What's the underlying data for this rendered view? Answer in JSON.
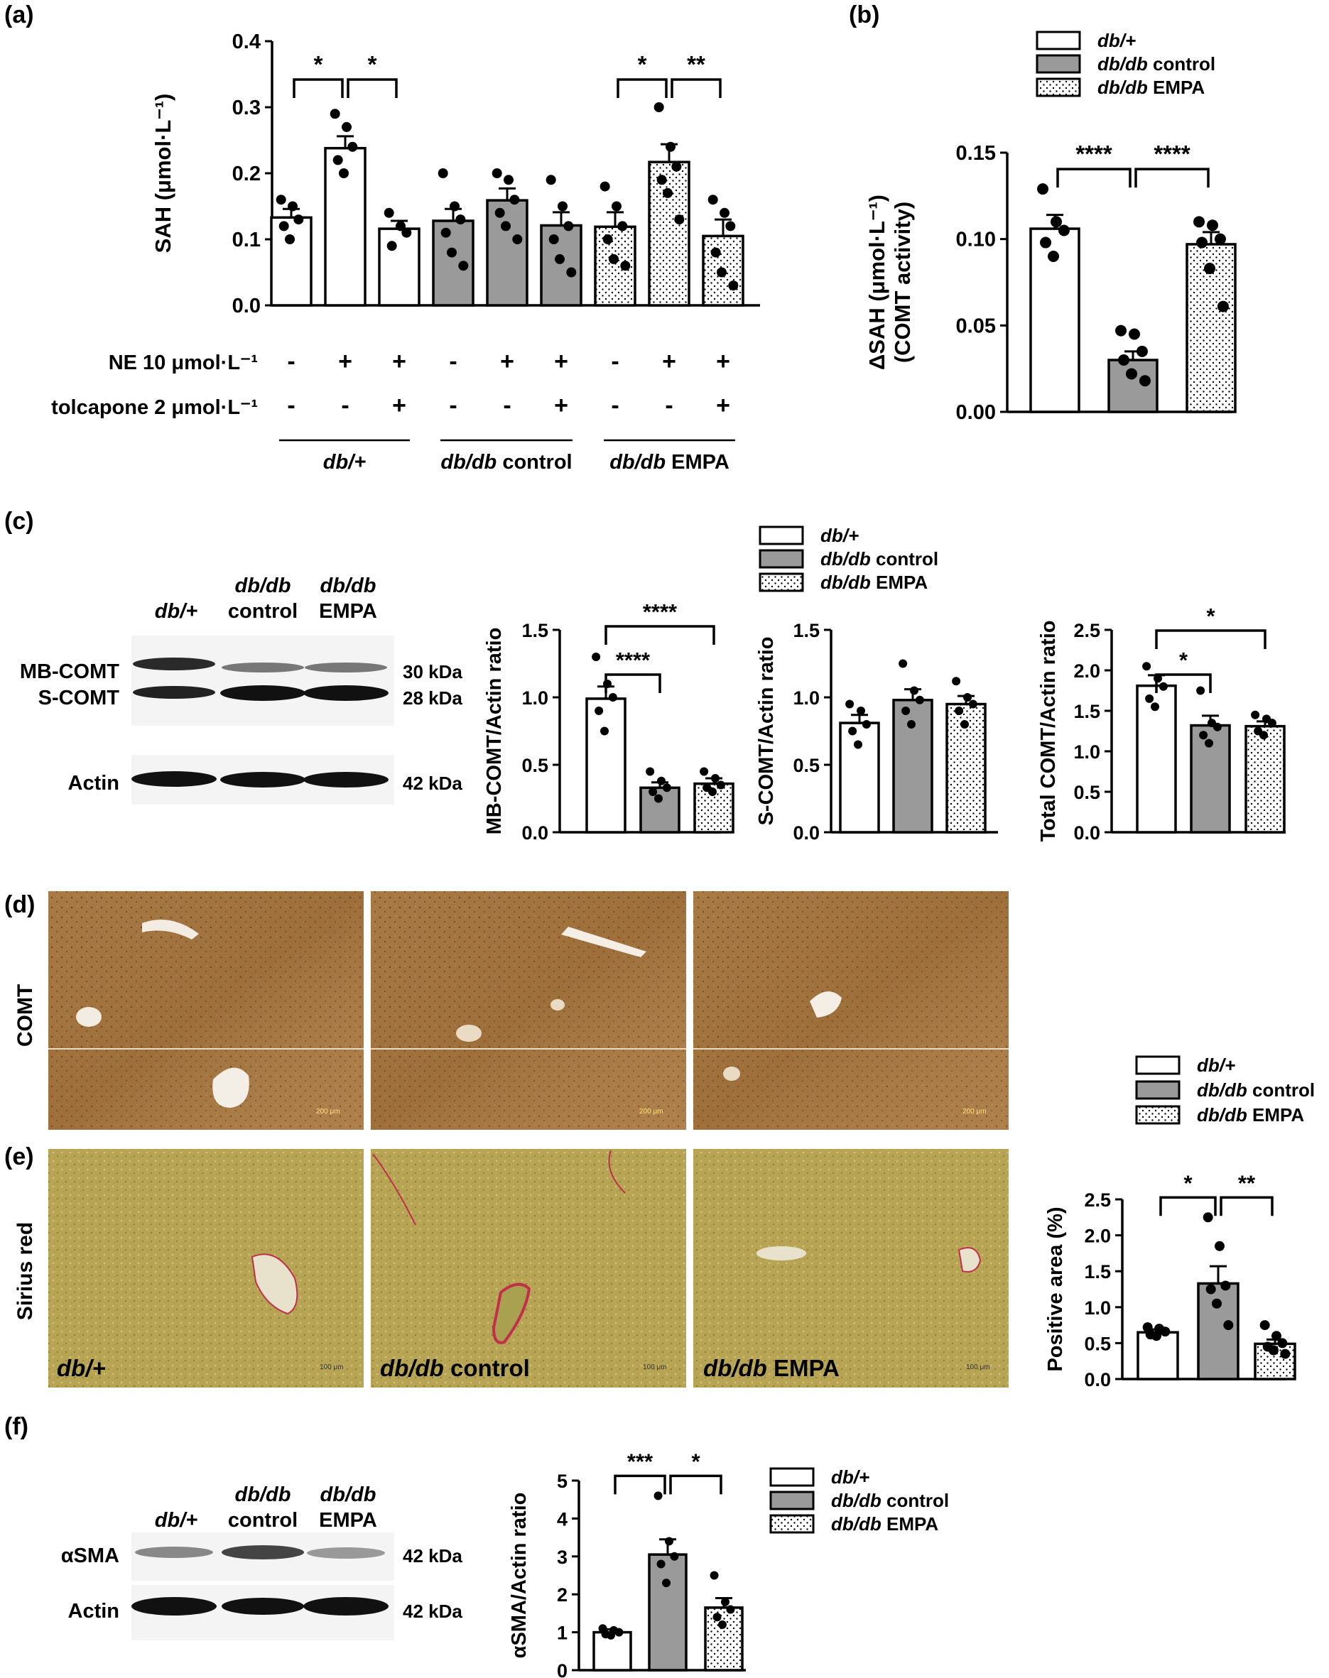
{
  "panels": {
    "a": "(a)",
    "b": "(b)",
    "c": "(c)",
    "d": "(d)",
    "e": "(e)",
    "f": "(f)"
  },
  "groups": [
    {
      "italic": "db/+",
      "rest": "",
      "fill": "white"
    },
    {
      "italic": "db/db",
      "rest": " control",
      "fill": "gray"
    },
    {
      "italic": "db/db",
      "rest": " EMPA",
      "fill": "dots"
    }
  ],
  "colors": {
    "gray_bar": "#9a9a9a",
    "white_bar": "#ffffff",
    "dot": "#000000"
  },
  "a_rows": {
    "ne_label": "NE 10 μmol·L⁻¹",
    "ne": [
      "-",
      "+",
      "+",
      "-",
      "+",
      "+",
      "-",
      "+",
      "+"
    ],
    "tol_label": "tolcapone 2 μmol·L⁻¹",
    "tol": [
      "-",
      "-",
      "+",
      "-",
      "-",
      "+",
      "-",
      "-",
      "+"
    ]
  },
  "blot_c": {
    "lanes": [
      [
        "db/+",
        ""
      ],
      [
        "db/db",
        "control"
      ],
      [
        "db/db",
        "EMPA"
      ]
    ],
    "rows": [
      {
        "left": "MB-COMT",
        "right": "30 kDa"
      },
      {
        "left": "S-COMT",
        "right": "28 kDa"
      },
      {
        "left": "Actin",
        "right": "42 kDa"
      }
    ]
  },
  "blot_f": {
    "lanes": [
      [
        "db/+",
        ""
      ],
      [
        "db/db",
        "control"
      ],
      [
        "db/db",
        "EMPA"
      ]
    ],
    "rows": [
      {
        "left": "αSMA",
        "right": "42 kDa"
      },
      {
        "left": "Actin",
        "right": "42 kDa"
      }
    ]
  },
  "histo": {
    "row_d": "COMT",
    "row_e": "Sirius red",
    "scale_d": "200 μm",
    "scale_e": "100 μm",
    "colors": {
      "comt": "#a87a45",
      "comt_dark": "#8a5a28",
      "sirius": "#b7a555",
      "sirius_red": "#c0304a"
    }
  },
  "chart_data": [
    {
      "id": "a",
      "type": "bar",
      "ylabel": "SAH (μmol·L⁻¹)",
      "ylim": [
        0,
        0.4
      ],
      "yticks": [
        "0.0",
        "0.1",
        "0.2",
        "0.3",
        "0.4"
      ],
      "categories": [
        "db/+ -/-",
        "db/+ +/-",
        "db/+ +/+",
        "db/db control -/-",
        "db/db control +/-",
        "db/db control +/+",
        "db/db EMPA -/-",
        "db/db EMPA +/-",
        "db/db EMPA +/+"
      ],
      "values": [
        0.133,
        0.238,
        0.116,
        0.128,
        0.159,
        0.121,
        0.119,
        0.217,
        0.105
      ],
      "sem": [
        0.013,
        0.018,
        0.012,
        0.018,
        0.018,
        0.02,
        0.022,
        0.027,
        0.025
      ],
      "fills": [
        "white",
        "white",
        "white",
        "gray",
        "gray",
        "gray",
        "dots",
        "dots",
        "dots"
      ],
      "points": [
        [
          0.16,
          0.15,
          0.13,
          0.12,
          0.1
        ],
        [
          0.29,
          0.27,
          0.24,
          0.22,
          0.2
        ],
        [
          0.14,
          0.12,
          0.11,
          0.09
        ],
        [
          0.2,
          0.15,
          0.13,
          0.11,
          0.08,
          0.06
        ],
        [
          0.2,
          0.19,
          0.16,
          0.14,
          0.12,
          0.1
        ],
        [
          0.19,
          0.15,
          0.12,
          0.1,
          0.07,
          0.05
        ],
        [
          0.18,
          0.15,
          0.12,
          0.1,
          0.07,
          0.06
        ],
        [
          0.3,
          0.24,
          0.21,
          0.19,
          0.17,
          0.13
        ],
        [
          0.16,
          0.14,
          0.12,
          0.08,
          0.05,
          0.03
        ]
      ],
      "sig": [
        {
          "from": 0,
          "to": 1,
          "label": "*"
        },
        {
          "from": 1,
          "to": 2,
          "label": "*"
        },
        {
          "from": 6,
          "to": 7,
          "label": "*"
        },
        {
          "from": 7,
          "to": 8,
          "label": "**"
        }
      ]
    },
    {
      "id": "b",
      "type": "bar",
      "ylabel": "ΔSAH (μmol·L⁻¹)",
      "ylabel2": "(COMT activity)",
      "ylim": [
        0,
        0.15
      ],
      "yticks": [
        "0.00",
        "0.05",
        "0.10",
        "0.15"
      ],
      "categories": [
        "db/+",
        "db/db control",
        "db/db EMPA"
      ],
      "values": [
        0.106,
        0.03,
        0.097
      ],
      "sem": [
        0.008,
        0.005,
        0.007
      ],
      "fills": [
        "white",
        "gray",
        "dots"
      ],
      "points": [
        [
          0.129,
          0.11,
          0.105,
          0.098,
          0.09
        ],
        [
          0.047,
          0.045,
          0.035,
          0.03,
          0.022,
          0.018
        ],
        [
          0.11,
          0.108,
          0.1,
          0.098,
          0.083,
          0.061
        ]
      ],
      "sig": [
        {
          "from": 0,
          "to": 1,
          "label": "****"
        },
        {
          "from": 1,
          "to": 2,
          "label": "****"
        }
      ]
    },
    {
      "id": "c1",
      "type": "bar",
      "ylabel": "MB-COMT/Actin ratio",
      "ylim": [
        0,
        1.5
      ],
      "yticks": [
        "0.0",
        "0.5",
        "1.0",
        "1.5"
      ],
      "categories": [
        "db/+",
        "db/db control",
        "db/db EMPA"
      ],
      "values": [
        0.99,
        0.33,
        0.36
      ],
      "sem": [
        0.09,
        0.04,
        0.04
      ],
      "fills": [
        "white",
        "gray",
        "dots"
      ],
      "points": [
        [
          1.3,
          1.1,
          1.0,
          0.9,
          0.75
        ],
        [
          0.45,
          0.38,
          0.33,
          0.3,
          0.25
        ],
        [
          0.45,
          0.4,
          0.35,
          0.33,
          0.3
        ]
      ],
      "sig": [
        {
          "from": 0,
          "to": 1,
          "label": "****",
          "level": 0
        },
        {
          "from": 0,
          "to": 2,
          "label": "****",
          "level": 1
        }
      ]
    },
    {
      "id": "c2",
      "type": "bar",
      "ylabel": "S-COMT/Actin ratio",
      "ylim": [
        0,
        1.5
      ],
      "yticks": [
        "0.0",
        "0.5",
        "1.0",
        "1.5"
      ],
      "categories": [
        "db/+",
        "db/db control",
        "db/db EMPA"
      ],
      "values": [
        0.81,
        0.98,
        0.95
      ],
      "sem": [
        0.06,
        0.08,
        0.06
      ],
      "fills": [
        "white",
        "gray",
        "dots"
      ],
      "points": [
        [
          0.95,
          0.9,
          0.8,
          0.75,
          0.65
        ],
        [
          1.25,
          1.05,
          0.98,
          0.9,
          0.8
        ],
        [
          1.12,
          1.0,
          0.95,
          0.9,
          0.8
        ]
      ],
      "sig": []
    },
    {
      "id": "c3",
      "type": "bar",
      "ylabel": "Total COMT/Actin ratio",
      "ylim": [
        0,
        2.5
      ],
      "yticks": [
        "0.0",
        "0.5",
        "1.0",
        "1.5",
        "2.0",
        "2.5"
      ],
      "categories": [
        "db/+",
        "db/db control",
        "db/db EMPA"
      ],
      "values": [
        1.81,
        1.32,
        1.31
      ],
      "sem": [
        0.13,
        0.12,
        0.06
      ],
      "fills": [
        "white",
        "gray",
        "dots"
      ],
      "points": [
        [
          2.05,
          1.9,
          1.8,
          1.65,
          1.55
        ],
        [
          1.75,
          1.35,
          1.3,
          1.2,
          1.1
        ],
        [
          1.45,
          1.4,
          1.35,
          1.25,
          1.2
        ]
      ],
      "sig": [
        {
          "from": 0,
          "to": 1,
          "label": "*",
          "level": 0
        },
        {
          "from": 0,
          "to": 2,
          "label": "*",
          "level": 1
        }
      ]
    },
    {
      "id": "e",
      "type": "bar",
      "ylabel": "Positive area (%)",
      "ylim": [
        0,
        2.5
      ],
      "yticks": [
        "0.0",
        "0.5",
        "1.0",
        "1.5",
        "2.0",
        "2.5"
      ],
      "categories": [
        "db/+",
        "db/db control",
        "db/db EMPA"
      ],
      "values": [
        0.65,
        1.33,
        0.49
      ],
      "sem": [
        0.04,
        0.24,
        0.06
      ],
      "fills": [
        "white",
        "gray",
        "dots"
      ],
      "points": [
        [
          0.72,
          0.7,
          0.66,
          0.62,
          0.6
        ],
        [
          2.25,
          1.85,
          1.3,
          1.25,
          1.05,
          0.75
        ],
        [
          0.75,
          0.6,
          0.5,
          0.45,
          0.4,
          0.35
        ]
      ],
      "sig": [
        {
          "from": 0,
          "to": 1,
          "label": "*"
        },
        {
          "from": 1,
          "to": 2,
          "label": "**"
        }
      ]
    },
    {
      "id": "f",
      "type": "bar",
      "ylabel": "αSMA/Actin ratio",
      "ylim": [
        0,
        5
      ],
      "yticks": [
        "0",
        "1",
        "2",
        "3",
        "4",
        "5"
      ],
      "categories": [
        "db/+",
        "db/db control",
        "db/db EMPA"
      ],
      "values": [
        1.0,
        3.05,
        1.65
      ],
      "sem": [
        0.08,
        0.4,
        0.25
      ],
      "fills": [
        "white",
        "gray",
        "dots"
      ],
      "points": [
        [
          1.1,
          1.05,
          1.0,
          0.95,
          0.92
        ],
        [
          4.6,
          3.4,
          3.0,
          2.8,
          2.3
        ],
        [
          2.5,
          1.8,
          1.6,
          1.4,
          1.2
        ]
      ],
      "sig": [
        {
          "from": 0,
          "to": 1,
          "label": "***"
        },
        {
          "from": 1,
          "to": 2,
          "label": "*"
        }
      ]
    }
  ]
}
